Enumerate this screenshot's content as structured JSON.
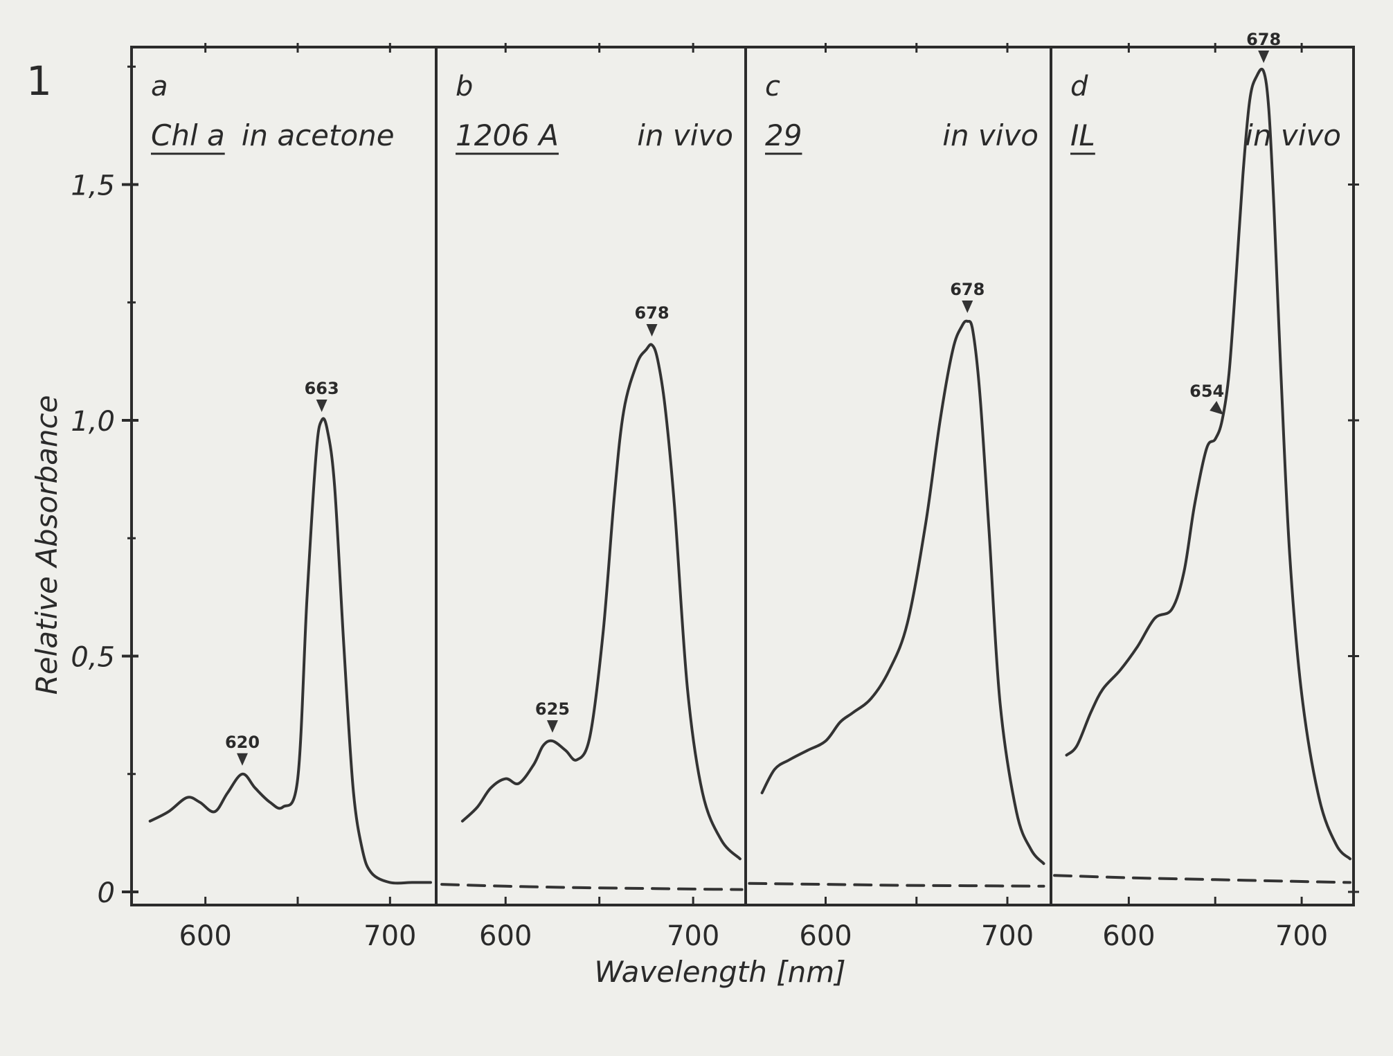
{
  "figure": {
    "number": "1",
    "ylabel": "Relative  Absorbance",
    "xlabel": "Wavelength [nm]"
  },
  "chart_data": {
    "type": "line",
    "ylabel": "Relative  Absorbance",
    "xlabel": "Wavelength [nm]",
    "ylim": [
      0,
      1.85
    ],
    "y_ticks": [
      0,
      0.5,
      1.0,
      1.5
    ],
    "y_tick_labels": [
      "0",
      "0,5",
      "1,0",
      "1,5"
    ],
    "x_ticks": [
      600,
      700
    ],
    "x_tick_labels": [
      "600",
      "700"
    ],
    "grid": false,
    "legend": "none",
    "colors": {
      "curve": "#333333",
      "axis": "#2b2b2b"
    },
    "panels": [
      {
        "letter": "a",
        "sample": "Chl a",
        "condition": "in acetone",
        "xlim": [
          560,
          725
        ],
        "series": [
          {
            "style": "solid",
            "x": [
              570,
              580,
              590,
              597,
              605,
              612,
              620,
              627,
              635,
              642,
              650,
              655,
              660,
              663,
              666,
              670,
              675,
              680,
              685,
              690,
              700,
              712,
              722
            ],
            "y": [
              0.15,
              0.17,
              0.2,
              0.19,
              0.17,
              0.21,
              0.25,
              0.22,
              0.19,
              0.18,
              0.24,
              0.62,
              0.93,
              1.0,
              0.98,
              0.86,
              0.52,
              0.22,
              0.09,
              0.04,
              0.02,
              0.02,
              0.02
            ]
          }
        ],
        "peaks": [
          {
            "label": "620",
            "x": 620,
            "y": 0.25
          },
          {
            "label": "663",
            "x": 663,
            "y": 1.0
          }
        ]
      },
      {
        "letter": "b",
        "sample": "1206 A",
        "condition": "in vivo",
        "xlim": [
          563,
          728
        ],
        "series": [
          {
            "style": "solid",
            "x": [
              577,
              585,
              592,
              600,
              607,
              615,
              620,
              625,
              632,
              638,
              645,
              652,
              658,
              663,
              670,
              675,
              678,
              681,
              685,
              690,
              697,
              705,
              715,
              725
            ],
            "y": [
              0.15,
              0.18,
              0.22,
              0.24,
              0.23,
              0.27,
              0.31,
              0.32,
              0.3,
              0.28,
              0.33,
              0.55,
              0.84,
              1.02,
              1.12,
              1.15,
              1.16,
              1.13,
              1.03,
              0.82,
              0.43,
              0.21,
              0.11,
              0.07
            ]
          },
          {
            "style": "dashed",
            "x": [
              566,
              600,
              640,
              680,
              700,
              726
            ],
            "y": [
              0.016,
              0.012,
              0.009,
              0.007,
              0.006,
              0.005
            ]
          }
        ],
        "peaks": [
          {
            "label": "625",
            "x": 625,
            "y": 0.32
          },
          {
            "label": "678",
            "x": 678,
            "y": 1.16
          }
        ]
      },
      {
        "letter": "c",
        "sample": "29",
        "condition": "in vivo",
        "xlim": [
          556,
          724
        ],
        "series": [
          {
            "style": "solid",
            "x": [
              565,
              572,
              580,
              590,
              600,
              608,
              615,
              625,
              635,
              645,
              655,
              663,
              670,
              675,
              678,
              681,
              685,
              690,
              696,
              705,
              713,
              720
            ],
            "y": [
              0.21,
              0.26,
              0.28,
              0.3,
              0.32,
              0.36,
              0.38,
              0.41,
              0.47,
              0.57,
              0.78,
              1.0,
              1.15,
              1.2,
              1.21,
              1.19,
              1.05,
              0.76,
              0.4,
              0.17,
              0.09,
              0.06
            ]
          },
          {
            "style": "dashed",
            "x": [
              558,
              600,
              640,
              680,
              720
            ],
            "y": [
              0.018,
              0.016,
              0.014,
              0.013,
              0.012
            ]
          }
        ],
        "peaks": [
          {
            "label": "678",
            "x": 678,
            "y": 1.21
          }
        ]
      },
      {
        "letter": "d",
        "sample": "IL",
        "condition": "in vivo",
        "xlim": [
          555,
          730
        ],
        "series": [
          {
            "style": "solid",
            "x": [
              564,
              570,
              578,
              585,
              595,
              605,
              615,
              625,
              632,
              638,
              645,
              650,
              654,
              658,
              662,
              666,
              670,
              674,
              678,
              681,
              684,
              688,
              693,
              700,
              710,
              720,
              728
            ],
            "y": [
              0.29,
              0.31,
              0.38,
              0.43,
              0.47,
              0.52,
              0.58,
              0.6,
              0.68,
              0.82,
              0.94,
              0.96,
              1.0,
              1.1,
              1.3,
              1.52,
              1.68,
              1.73,
              1.74,
              1.66,
              1.45,
              1.1,
              0.72,
              0.42,
              0.2,
              0.1,
              0.07
            ]
          },
          {
            "style": "dashed",
            "x": [
              557,
              600,
              650,
              700,
              728
            ],
            "y": [
              0.035,
              0.03,
              0.026,
              0.022,
              0.02
            ]
          }
        ],
        "peaks": [
          {
            "label": "654",
            "x": 654,
            "y": 1.0
          },
          {
            "label": "678",
            "x": 678,
            "y": 1.74
          }
        ]
      }
    ]
  }
}
